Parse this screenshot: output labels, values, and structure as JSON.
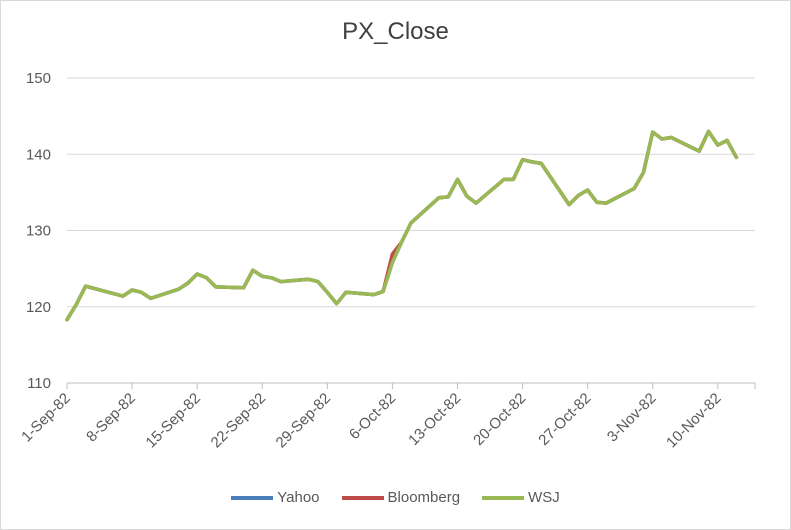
{
  "chart_data": {
    "type": "line",
    "title": "PX_Close",
    "xlabel": "",
    "ylabel": "",
    "ylim": [
      110,
      150
    ],
    "yticks": [
      "110",
      "120",
      "130",
      "140",
      "150"
    ],
    "xtick_labels": [
      "1-Sep-82",
      "8-Sep-82",
      "15-Sep-82",
      "22-Sep-82",
      "29-Sep-82",
      "6-Oct-82",
      "13-Oct-82",
      "20-Oct-82",
      "27-Oct-82",
      "3-Nov-82",
      "10-Nov-82"
    ],
    "x": [
      "1-Sep-82",
      "2-Sep-82",
      "3-Sep-82",
      "7-Sep-82",
      "8-Sep-82",
      "9-Sep-82",
      "10-Sep-82",
      "13-Sep-82",
      "14-Sep-82",
      "15-Sep-82",
      "16-Sep-82",
      "17-Sep-82",
      "20-Sep-82",
      "21-Sep-82",
      "22-Sep-82",
      "23-Sep-82",
      "24-Sep-82",
      "27-Sep-82",
      "28-Sep-82",
      "29-Sep-82",
      "30-Sep-82",
      "1-Oct-82",
      "4-Oct-82",
      "5-Oct-82",
      "6-Oct-82",
      "7-Oct-82",
      "8-Oct-82",
      "11-Oct-82",
      "12-Oct-82",
      "13-Oct-82",
      "14-Oct-82",
      "15-Oct-82",
      "18-Oct-82",
      "19-Oct-82",
      "20-Oct-82",
      "21-Oct-82",
      "22-Oct-82",
      "25-Oct-82",
      "26-Oct-82",
      "27-Oct-82",
      "28-Oct-82",
      "29-Oct-82",
      "1-Nov-82",
      "2-Nov-82",
      "3-Nov-82",
      "4-Nov-82",
      "5-Nov-82",
      "8-Nov-82",
      "9-Nov-82",
      "10-Nov-82",
      "11-Nov-82",
      "12-Nov-82"
    ],
    "series": [
      {
        "name": "Yahoo",
        "color": "#4a7ebb",
        "values": [
          118.3,
          120.3,
          122.7,
          121.4,
          122.2,
          121.9,
          121.1,
          122.3,
          123.1,
          124.3,
          123.8,
          122.6,
          122.5,
          124.8,
          124.0,
          123.8,
          123.3,
          123.6,
          123.3,
          121.9,
          120.4,
          121.9,
          121.6,
          122.0,
          125.8,
          128.5,
          131.0,
          134.3,
          134.4,
          136.7,
          134.5,
          133.6,
          136.7,
          136.7,
          139.3,
          139.0,
          138.8,
          133.4,
          134.6,
          135.3,
          133.7,
          133.6,
          135.5,
          137.6,
          142.9,
          142.0,
          142.2,
          140.4,
          143.0,
          141.2,
          141.8,
          139.6
        ]
      },
      {
        "name": "Bloomberg",
        "color": "#be4b48",
        "values": [
          118.3,
          120.3,
          122.7,
          121.4,
          122.2,
          121.9,
          121.1,
          122.3,
          123.1,
          124.3,
          123.8,
          122.6,
          122.5,
          124.8,
          124.0,
          123.8,
          123.3,
          123.6,
          123.3,
          121.9,
          120.4,
          121.9,
          121.6,
          122.0,
          126.9,
          128.5,
          131.0,
          134.3,
          134.4,
          136.7,
          134.5,
          133.6,
          136.7,
          136.7,
          139.3,
          139.0,
          138.8,
          133.4,
          134.6,
          135.3,
          133.7,
          133.6,
          135.5,
          137.6,
          142.9,
          142.0,
          142.2,
          140.4,
          143.0,
          141.2,
          141.8,
          139.6
        ]
      },
      {
        "name": "WSJ",
        "color": "#98b954",
        "values": [
          118.3,
          120.3,
          122.7,
          121.4,
          122.2,
          121.9,
          121.1,
          122.3,
          123.1,
          124.3,
          123.8,
          122.6,
          122.5,
          124.8,
          124.0,
          123.8,
          123.3,
          123.6,
          123.3,
          121.9,
          120.4,
          121.9,
          121.6,
          122.0,
          125.8,
          128.5,
          131.0,
          134.3,
          134.4,
          136.7,
          134.5,
          133.6,
          136.7,
          136.7,
          139.3,
          139.0,
          138.8,
          133.4,
          134.6,
          135.3,
          133.7,
          133.6,
          135.5,
          137.6,
          142.9,
          142.0,
          142.2,
          140.4,
          143.0,
          141.2,
          141.8,
          139.6
        ]
      }
    ],
    "grid": true,
    "legend": "bottom"
  }
}
